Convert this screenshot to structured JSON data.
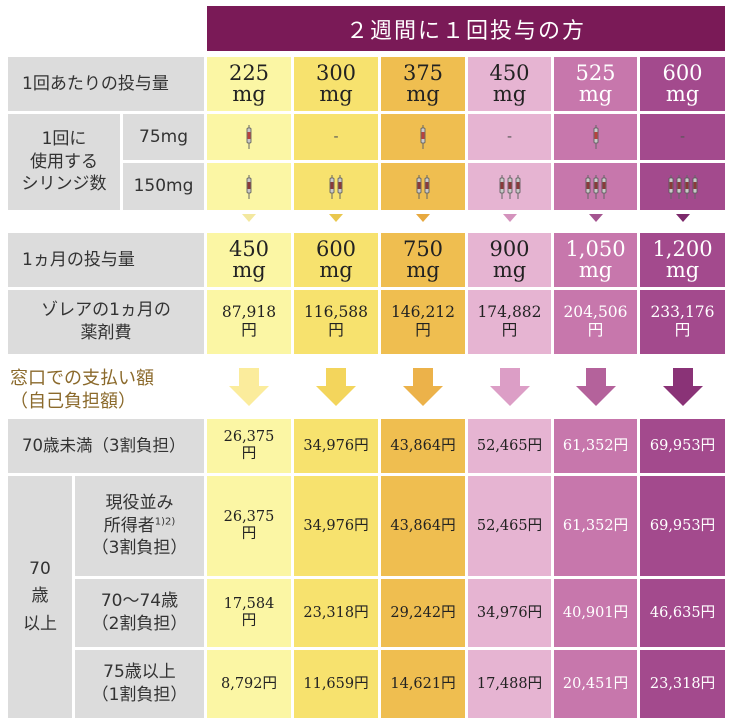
{
  "banner": "２週間に１回投与の方",
  "row_labels": {
    "dose_per_time": "1回あたりの投与量",
    "syringes_line1": "1回に",
    "syringes_line2": "使用する",
    "syringes_line3": "シリンジ数",
    "syringe_75": "75mg",
    "syringe_150": "150mg",
    "monthly_dose": "1ヵ月の投与量",
    "drug_cost_line1": "ゾレアの1ヵ月の",
    "drug_cost_line2": "薬剤費",
    "under70": "70歳未満（3割負担）",
    "over70_line1": "70",
    "over70_line2": "歳",
    "over70_line3": "以上",
    "active_income_line1": "現役並み",
    "active_income_line2": "所得者",
    "active_income_note": "1)2)",
    "active_income_line3": "（3割負担）",
    "age70_74_line1": "70〜74歳",
    "age70_74_line2": "（2割負担）",
    "age75_line1": "75歳以上",
    "age75_line2": "（1割負担）"
  },
  "caption": {
    "line1": "窓口での支払い額",
    "line2": "（自己負担額）"
  },
  "unit_mg": "mg",
  "unit_yen": "円",
  "dash": "-",
  "columns": [
    {
      "dose": "225",
      "syr75": 1,
      "syr150": 1,
      "monthly": "450",
      "cost": "87,918",
      "under70": "26,375",
      "active": "26,375",
      "age70_74": "17,584",
      "age75": "8,792円",
      "bg": "#fbf6a4",
      "arrow": "#fbec9c",
      "tri": "#f3e8a0",
      "text_white": false
    },
    {
      "dose": "300",
      "syr75": 0,
      "syr150": 2,
      "monthly": "600",
      "cost": "116,588",
      "under70": "34,976円",
      "active": "34,976円",
      "age70_74": "23,318円",
      "age75": "11,659円",
      "bg": "#f7e26e",
      "arrow": "#f3d55c",
      "tri": "#e9c74f",
      "text_white": false
    },
    {
      "dose": "375",
      "syr75": 1,
      "syr150": 2,
      "monthly": "750",
      "cost": "146,212",
      "under70": "43,864円",
      "active": "43,864円",
      "age70_74": "29,242円",
      "age75": "14,621円",
      "bg": "#efbe50",
      "arrow": "#ecb24a",
      "tri": "#e7a940",
      "text_white": false
    },
    {
      "dose": "450",
      "syr75": 0,
      "syr150": 3,
      "monthly": "900",
      "cost": "174,882",
      "under70": "52,465円",
      "active": "52,465円",
      "age70_74": "34,976円",
      "age75": "17,488円",
      "bg": "#e6b4d2",
      "arrow": "#dc9ec6",
      "tri": "#d493bd",
      "text_white": false
    },
    {
      "dose": "525",
      "syr75": 1,
      "syr150": 3,
      "monthly": "1,050",
      "cost": "204,506",
      "under70": "61,352円",
      "active": "61,352円",
      "age70_74": "40,901円",
      "age75": "20,451円",
      "bg": "#c777ac",
      "arrow": "#b4629b",
      "tri": "#a45590",
      "text_white": true
    },
    {
      "dose": "600",
      "syr75": 0,
      "syr150": 4,
      "monthly": "1,200",
      "cost": "233,176",
      "under70": "69,953円",
      "active": "69,953円",
      "age70_74": "46,635円",
      "age75": "23,318円",
      "bg": "#a34a8d",
      "arrow": "#8a3377",
      "tri": "#7c2a6b",
      "text_white": true
    }
  ]
}
